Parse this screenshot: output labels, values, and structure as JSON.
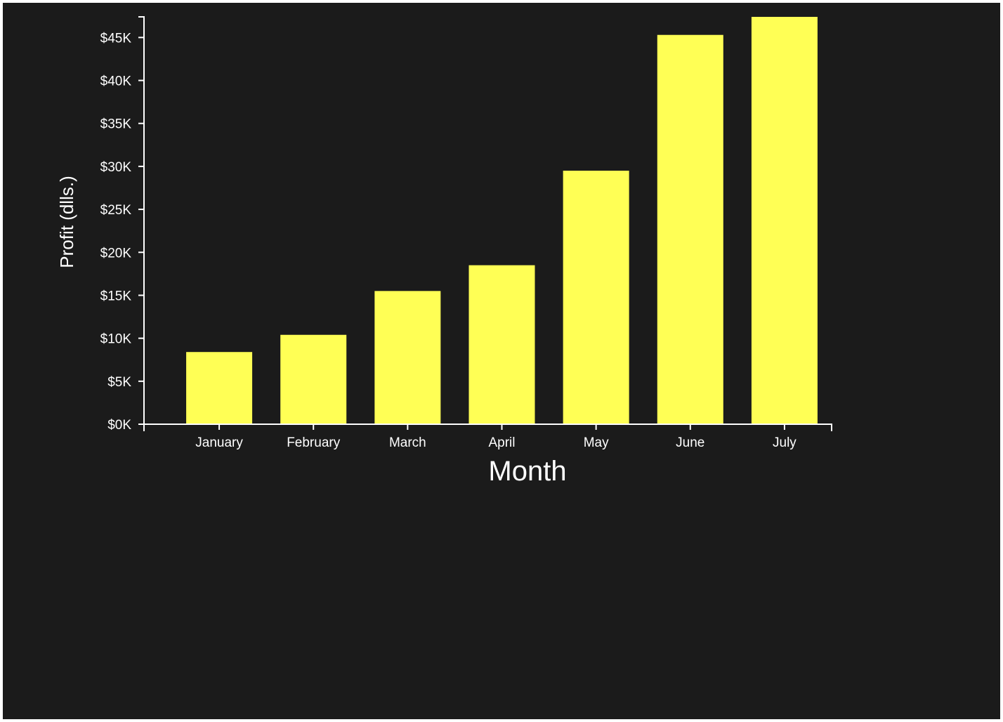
{
  "chart_data": {
    "type": "bar",
    "categories": [
      "January",
      "February",
      "March",
      "April",
      "May",
      "June",
      "July"
    ],
    "values": [
      8400,
      10400,
      15500,
      18500,
      29500,
      45300,
      47400
    ],
    "xlabel": "Month",
    "ylabel": "Profit (dlls.)",
    "ylim": [
      0,
      47400
    ],
    "yticks": [
      {
        "value": 0,
        "label": "$0K"
      },
      {
        "value": 5000,
        "label": "$5K"
      },
      {
        "value": 10000,
        "label": "$10K"
      },
      {
        "value": 15000,
        "label": "$15K"
      },
      {
        "value": 20000,
        "label": "$20K"
      },
      {
        "value": 25000,
        "label": "$25K"
      },
      {
        "value": 30000,
        "label": "$30K"
      },
      {
        "value": 35000,
        "label": "$35K"
      },
      {
        "value": 40000,
        "label": "$40K"
      },
      {
        "value": 45000,
        "label": "$45K"
      }
    ],
    "bar_color": "#ffff55",
    "background_color": "#1b1b1b",
    "grid": false,
    "legend": "none"
  }
}
